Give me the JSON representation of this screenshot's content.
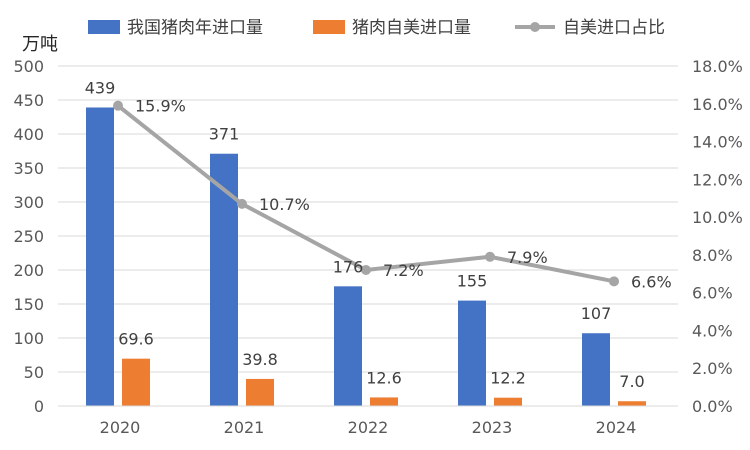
{
  "chart_data": {
    "type": "bar",
    "unit_label": "万吨",
    "categories": [
      "2020",
      "2021",
      "2022",
      "2023",
      "2024"
    ],
    "series": [
      {
        "name": "我国猪肉年进口量",
        "type": "bar",
        "axis": "left",
        "values": [
          439,
          371,
          176,
          155,
          107
        ],
        "labels": [
          "439",
          "371",
          "176",
          "155",
          "107"
        ],
        "color": "#4472C4"
      },
      {
        "name": "猪肉自美进口量",
        "type": "bar",
        "axis": "left",
        "values": [
          69.6,
          39.8,
          12.6,
          12.2,
          7.0
        ],
        "labels": [
          "69.6",
          "39.8",
          "12.6",
          "12.2",
          "7.0"
        ],
        "color": "#ED7D31"
      },
      {
        "name": "自美进口占比",
        "type": "line",
        "axis": "right",
        "values": [
          15.9,
          10.7,
          7.2,
          7.9,
          6.6
        ],
        "labels": [
          "15.9%",
          "10.7%",
          "7.2%",
          "7.9%",
          "6.6%"
        ],
        "color": "#A5A5A5"
      }
    ],
    "y_left": {
      "min": 0,
      "max": 500,
      "step": 50,
      "ticks": [
        "0",
        "50",
        "100",
        "150",
        "200",
        "250",
        "300",
        "350",
        "400",
        "450",
        "500"
      ]
    },
    "y_right": {
      "min": 0,
      "max": 18,
      "step": 2,
      "ticks": [
        "0.0%",
        "2.0%",
        "4.0%",
        "6.0%",
        "8.0%",
        "10.0%",
        "12.0%",
        "14.0%",
        "16.0%",
        "18.0%"
      ]
    },
    "grid": true,
    "legend_position": "top"
  }
}
